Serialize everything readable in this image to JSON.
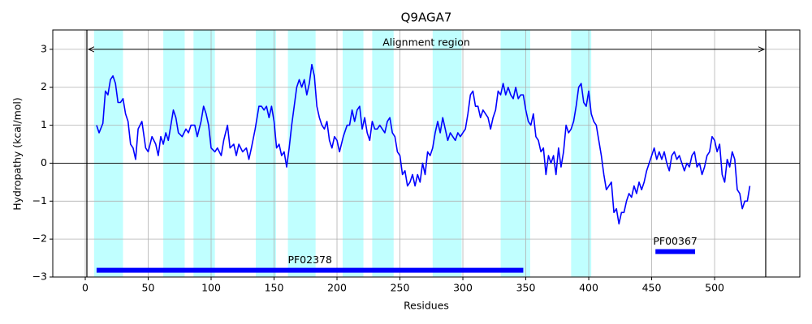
{
  "chart_data": {
    "type": "line",
    "title": "Q9AGA7",
    "xlabel": "Residues",
    "ylabel": "Hydropathy (kcal/mol)",
    "xlim": [
      -25.8,
      567.7
    ],
    "ylim": [
      -3,
      3.51
    ],
    "xticks": [
      0,
      50,
      100,
      150,
      200,
      250,
      300,
      350,
      400,
      450,
      500
    ],
    "yticks": [
      {
        "value": -3,
        "label": "−3"
      },
      {
        "value": -2,
        "label": "−2"
      },
      {
        "value": -1,
        "label": "−1"
      },
      0,
      1,
      2,
      3
    ],
    "grid": true,
    "hline": 0,
    "vlines": [
      1.3,
      540.6
    ],
    "region_color": "#c0ffff",
    "regions": [
      [
        7,
        30
      ],
      [
        62,
        79
      ],
      [
        86,
        103
      ],
      [
        135.5,
        151.6
      ],
      [
        161,
        183
      ],
      [
        204.5,
        221
      ],
      [
        228,
        245
      ],
      [
        276,
        299
      ],
      [
        330,
        353.5
      ],
      [
        386,
        402
      ]
    ],
    "alignment": {
      "label": "Alignment region",
      "start": 1.3,
      "end": 540.6,
      "y": 3
    },
    "domains": [
      {
        "name": "PF02378",
        "start": 9,
        "end": 348,
        "y": -2.82,
        "color": "#0000ff"
      },
      {
        "name": "PF00367",
        "start": 453,
        "end": 484.5,
        "y": -2.33,
        "color": "#0000ff"
      }
    ],
    "x": [
      9,
      11,
      14,
      16,
      18,
      20,
      22,
      24,
      26,
      28,
      30,
      32,
      34,
      36,
      38,
      40,
      42,
      45,
      48,
      50,
      53,
      56,
      58,
      60,
      62,
      64,
      66,
      68,
      70,
      72,
      74,
      77,
      80,
      82,
      84,
      87,
      89,
      92,
      94,
      96,
      98,
      100,
      103,
      105,
      108,
      110,
      113,
      115,
      118,
      120,
      122,
      125,
      128,
      130,
      132,
      135,
      138,
      140,
      142,
      144,
      146,
      148,
      150,
      152,
      154,
      156,
      158,
      160,
      162,
      164,
      166,
      168,
      170,
      172,
      174,
      176,
      178,
      180,
      182,
      184,
      186,
      188,
      190,
      192,
      194,
      196,
      198,
      200,
      202,
      205,
      208,
      210,
      212,
      214,
      216,
      218,
      220,
      222,
      224,
      226,
      228,
      230,
      232,
      234,
      236,
      238,
      240,
      242,
      244,
      246,
      248,
      250,
      252,
      254,
      256,
      258,
      260,
      262,
      264,
      266,
      268,
      270,
      272,
      274,
      276,
      278,
      280,
      282,
      284,
      286,
      288,
      290,
      292,
      294,
      296,
      298,
      300,
      302,
      304,
      306,
      308,
      310,
      312,
      314,
      316,
      318,
      320,
      322,
      324,
      326,
      328,
      330,
      332,
      334,
      336,
      338,
      340,
      342,
      344,
      346,
      348,
      350,
      352,
      354,
      356,
      358,
      360,
      362,
      364,
      366,
      368,
      370,
      372,
      374,
      376,
      378,
      380,
      382,
      384,
      386,
      388,
      390,
      392,
      394,
      396,
      398,
      400,
      402,
      404,
      406,
      408,
      410,
      412,
      414,
      416,
      418,
      420,
      422,
      424,
      426,
      428,
      430,
      432,
      434,
      436,
      438,
      440,
      442,
      444,
      446,
      448,
      450,
      452,
      454,
      456,
      458,
      460,
      462,
      464,
      466,
      468,
      470,
      472,
      474,
      476,
      478,
      480,
      482,
      484,
      486,
      488,
      490,
      492,
      494,
      496,
      498,
      500,
      502,
      504,
      506,
      508,
      510,
      512,
      514,
      516,
      518,
      520,
      522,
      524,
      526,
      528
    ],
    "series": [
      {
        "name": "Hydropathy",
        "color": "#0000ff",
        "values": [
          1.0,
          0.8,
          1.05,
          1.9,
          1.8,
          2.2,
          2.3,
          2.1,
          1.6,
          1.6,
          1.7,
          1.3,
          1.1,
          0.5,
          0.4,
          0.1,
          0.9,
          1.1,
          0.4,
          0.3,
          0.7,
          0.5,
          0.2,
          0.7,
          0.5,
          0.8,
          0.6,
          1.0,
          1.4,
          1.2,
          0.8,
          0.7,
          0.9,
          0.8,
          1.0,
          1.0,
          0.7,
          1.1,
          1.5,
          1.3,
          1.0,
          0.4,
          0.3,
          0.4,
          0.2,
          0.6,
          1.0,
          0.4,
          0.5,
          0.2,
          0.5,
          0.3,
          0.4,
          0.1,
          0.4,
          0.9,
          1.5,
          1.5,
          1.4,
          1.5,
          1.2,
          1.5,
          1.1,
          0.4,
          0.5,
          0.2,
          0.3,
          -0.1,
          0.4,
          1.0,
          1.5,
          2.0,
          2.2,
          2.0,
          2.2,
          1.8,
          2.1,
          2.6,
          2.3,
          1.5,
          1.2,
          1.0,
          0.9,
          1.1,
          0.6,
          0.4,
          0.7,
          0.6,
          0.3,
          0.7,
          1.0,
          1.0,
          1.4,
          1.1,
          1.4,
          1.5,
          0.9,
          1.2,
          0.8,
          0.6,
          1.1,
          0.9,
          0.9,
          1.0,
          0.9,
          0.8,
          1.1,
          1.2,
          0.8,
          0.7,
          0.3,
          0.2,
          -0.3,
          -0.2,
          -0.6,
          -0.5,
          -0.3,
          -0.6,
          -0.3,
          -0.5,
          0.0,
          -0.3,
          0.3,
          0.2,
          0.4,
          0.8,
          1.1,
          0.8,
          1.2,
          0.9,
          0.6,
          0.8,
          0.7,
          0.6,
          0.8,
          0.7,
          0.8,
          0.9,
          1.3,
          1.8,
          1.9,
          1.5,
          1.5,
          1.2,
          1.4,
          1.3,
          1.2,
          0.9,
          1.2,
          1.4,
          1.9,
          1.8,
          2.1,
          1.8,
          2.0,
          1.8,
          1.7,
          2.0,
          1.7,
          1.8,
          1.8,
          1.4,
          1.1,
          1.0,
          1.3,
          0.7,
          0.6,
          0.3,
          0.4,
          -0.3,
          0.2,
          0.0,
          0.2,
          -0.3,
          0.4,
          -0.1,
          0.3,
          1.0,
          0.8,
          0.9,
          1.1,
          1.5,
          2.0,
          2.1,
          1.6,
          1.5,
          1.9,
          1.3,
          1.1,
          1.0,
          0.6,
          0.2,
          -0.3,
          -0.7,
          -0.6,
          -0.5,
          -1.3,
          -1.2,
          -1.6,
          -1.3,
          -1.3,
          -1.0,
          -0.8,
          -0.9,
          -0.6,
          -0.8,
          -0.5,
          -0.7,
          -0.5,
          -0.2,
          0.0,
          0.2,
          0.4,
          0.1,
          0.3,
          0.1,
          0.3,
          0.0,
          -0.2,
          0.2,
          0.3,
          0.1,
          0.2,
          0.0,
          -0.2,
          0.0,
          -0.1,
          0.2,
          0.3,
          -0.1,
          0.0,
          -0.3,
          -0.1,
          0.2,
          0.3,
          0.7,
          0.6,
          0.3,
          0.5,
          -0.3,
          -0.5,
          0.1,
          -0.1,
          0.3,
          0.1,
          -0.7,
          -0.8,
          -1.2,
          -1.0,
          -1.0,
          -0.6
        ]
      }
    ]
  }
}
